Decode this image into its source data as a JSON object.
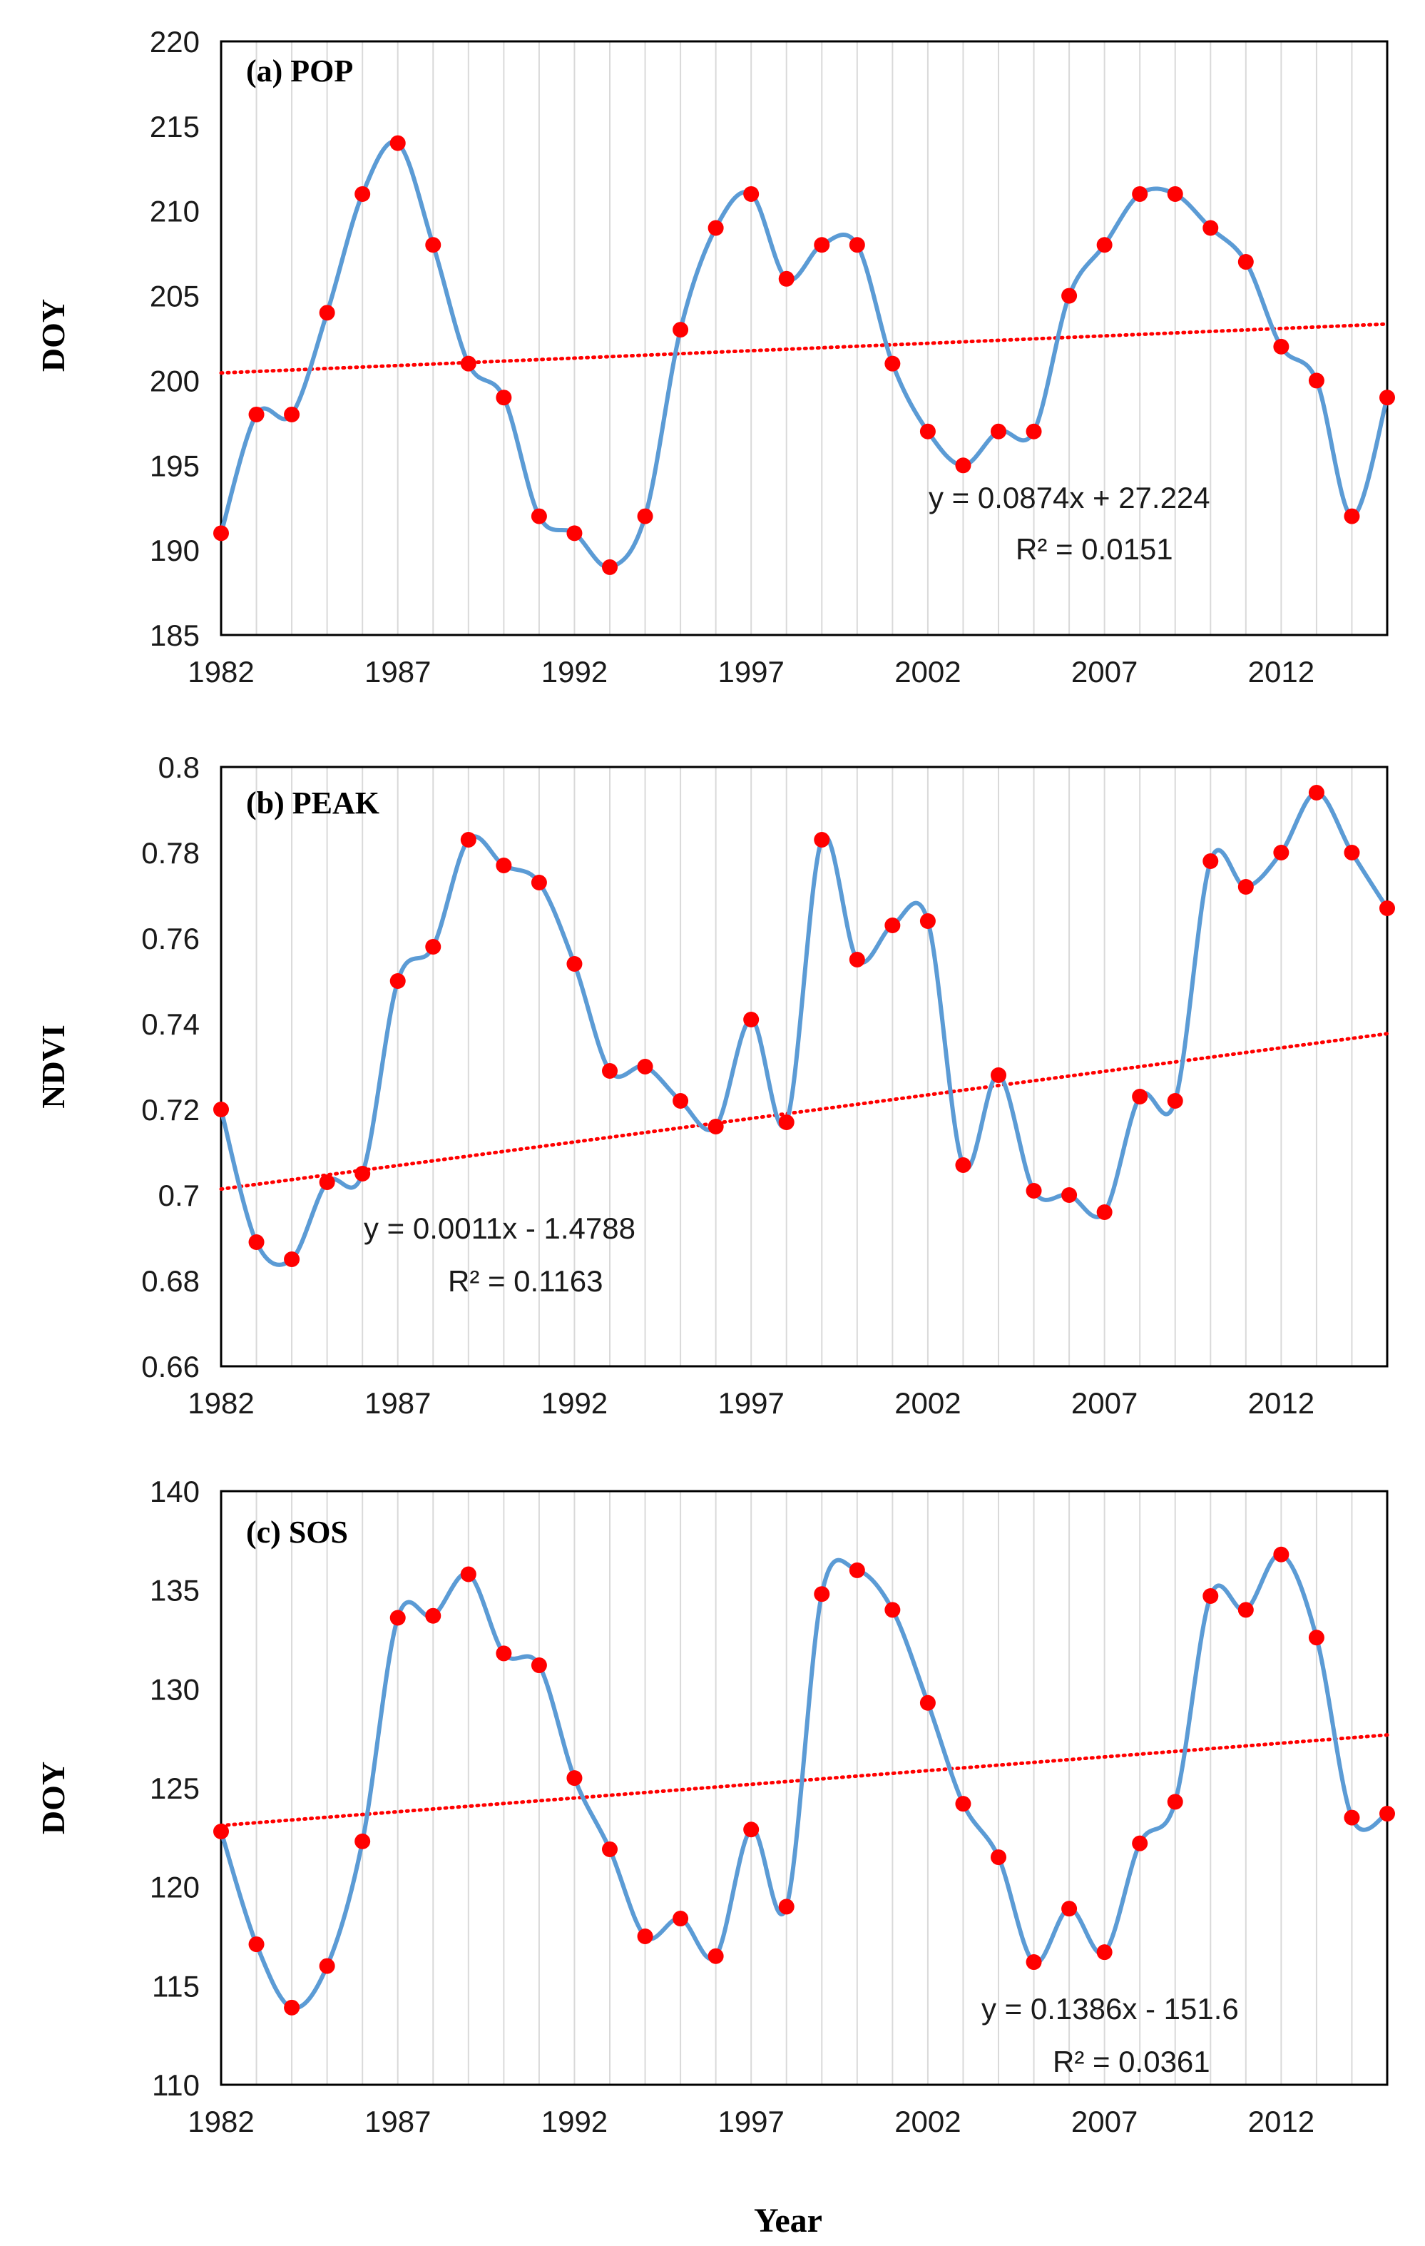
{
  "colors": {
    "line": "#5B9BD5",
    "point": "#FF0000",
    "trend": "#FF0000",
    "grid": "#D9D9D9",
    "frame": "#000000"
  },
  "figure": {
    "xlabel": "Year"
  },
  "chart_data": [
    {
      "type": "line",
      "title": "(a) POP",
      "xlabel": "",
      "ylabel": "DOY",
      "x": [
        1982,
        1983,
        1984,
        1985,
        1986,
        1987,
        1988,
        1989,
        1990,
        1991,
        1992,
        1993,
        1994,
        1995,
        1996,
        1997,
        1998,
        1999,
        2000,
        2001,
        2002,
        2003,
        2004,
        2005,
        2006,
        2007,
        2008,
        2009,
        2010,
        2011,
        2012,
        2013,
        2014,
        2015
      ],
      "values": [
        191,
        198,
        198,
        204,
        211,
        214,
        208,
        201,
        199,
        192,
        191,
        189,
        192,
        203,
        209,
        211,
        206,
        208,
        208,
        201,
        197,
        195,
        197,
        197,
        205,
        208,
        211,
        211,
        209,
        207,
        202,
        200,
        192,
        199
      ],
      "xlim": [
        1982,
        2015
      ],
      "ylim": [
        185,
        220
      ],
      "xticks": [
        "1982",
        "1987",
        "1992",
        "1997",
        "2002",
        "2007",
        "2012"
      ],
      "yticks": [
        "185",
        "190",
        "195",
        "200",
        "205",
        "210",
        "215",
        "220"
      ],
      "grid": "vertical",
      "trendline": {
        "slope": 0.0874,
        "intercept": 27.224
      },
      "equation": "y = 0.0874x + 27.224",
      "r2": "R² = 0.0151"
    },
    {
      "type": "line",
      "title": "(b) PEAK",
      "xlabel": "",
      "ylabel": "NDVI",
      "x": [
        1982,
        1983,
        1984,
        1985,
        1986,
        1987,
        1988,
        1989,
        1990,
        1991,
        1992,
        1993,
        1994,
        1995,
        1996,
        1997,
        1998,
        1999,
        2000,
        2001,
        2002,
        2003,
        2004,
        2005,
        2006,
        2007,
        2008,
        2009,
        2010,
        2011,
        2012,
        2013,
        2014,
        2015
      ],
      "values": [
        0.72,
        0.689,
        0.685,
        0.703,
        0.705,
        0.75,
        0.758,
        0.783,
        0.777,
        0.773,
        0.754,
        0.729,
        0.73,
        0.722,
        0.716,
        0.741,
        0.717,
        0.783,
        0.755,
        0.763,
        0.764,
        0.707,
        0.728,
        0.701,
        0.7,
        0.696,
        0.723,
        0.722,
        0.778,
        0.772,
        0.78,
        0.794,
        0.78,
        0.767
      ],
      "xlim": [
        1982,
        2015
      ],
      "ylim": [
        0.66,
        0.8
      ],
      "xticks": [
        "1982",
        "1987",
        "1992",
        "1997",
        "2002",
        "2007",
        "2012"
      ],
      "yticks": [
        "0.66",
        "0.68",
        "0.7",
        "0.72",
        "0.74",
        "0.76",
        "0.78",
        "0.8"
      ],
      "grid": "vertical",
      "trendline": {
        "slope": 0.0011,
        "intercept": -1.4788
      },
      "equation": "y = 0.0011x - 1.4788",
      "r2": "R² = 0.1163"
    },
    {
      "type": "line",
      "title": "(c) SOS",
      "xlabel": "Year",
      "ylabel": "DOY",
      "x": [
        1982,
        1983,
        1984,
        1985,
        1986,
        1987,
        1988,
        1989,
        1990,
        1991,
        1992,
        1993,
        1994,
        1995,
        1996,
        1997,
        1998,
        1999,
        2000,
        2001,
        2002,
        2003,
        2004,
        2005,
        2006,
        2007,
        2008,
        2009,
        2010,
        2011,
        2012,
        2013,
        2014,
        2015
      ],
      "values": [
        122.8,
        117.1,
        113.9,
        116.0,
        122.3,
        133.6,
        133.7,
        135.8,
        131.8,
        131.2,
        125.5,
        121.9,
        117.5,
        118.4,
        116.5,
        122.9,
        119.0,
        134.8,
        136.0,
        134.0,
        129.3,
        124.2,
        121.5,
        116.2,
        118.9,
        116.7,
        122.2,
        124.3,
        134.7,
        134.0,
        136.8,
        132.6,
        123.5,
        123.7
      ],
      "xlim": [
        1982,
        2015
      ],
      "ylim": [
        110,
        140
      ],
      "xticks": [
        "1982",
        "1987",
        "1992",
        "1997",
        "2002",
        "2007",
        "2012"
      ],
      "yticks": [
        "110",
        "115",
        "120",
        "125",
        "130",
        "135",
        "140"
      ],
      "grid": "vertical",
      "trendline": {
        "slope": 0.1386,
        "intercept": -151.6
      },
      "equation": "y = 0.1386x - 151.6",
      "r2": "R² = 0.0361"
    }
  ]
}
